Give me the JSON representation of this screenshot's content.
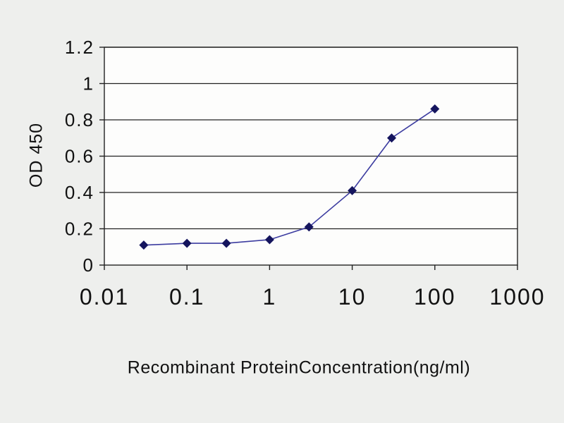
{
  "figure": {
    "background": "#eeefed",
    "plot_background": "#fdfdfc"
  },
  "chart_data": {
    "type": "line",
    "title": "",
    "xlabel": "Recombinant ProteinConcentration(ng/ml)",
    "ylabel": "OD 450",
    "x_scale": "log",
    "xlim": [
      0.01,
      1000
    ],
    "ylim": [
      0,
      1.2
    ],
    "x": [
      0.03,
      0.1,
      0.3,
      1,
      3,
      10,
      30,
      100
    ],
    "y": [
      0.11,
      0.12,
      0.12,
      0.14,
      0.21,
      0.41,
      0.7,
      0.86
    ],
    "x_ticks": [
      0.01,
      0.1,
      1,
      10,
      100,
      1000
    ],
    "x_tick_labels": [
      "0.01",
      "0.1",
      "1",
      "10",
      "100",
      "1000"
    ],
    "y_ticks": [
      0,
      0.2,
      0.4,
      0.6,
      0.8,
      1,
      1.2
    ],
    "y_tick_labels": [
      "0",
      "0.2",
      "0.4",
      "0.6",
      "0.8",
      "1",
      "1.2"
    ],
    "grid": "horizontal",
    "legend": "none",
    "line_color": "#3c3ca0",
    "marker": "diamond",
    "marker_color": "#15155e",
    "axis_color": "#222222",
    "tick_label_color": "#111111"
  }
}
